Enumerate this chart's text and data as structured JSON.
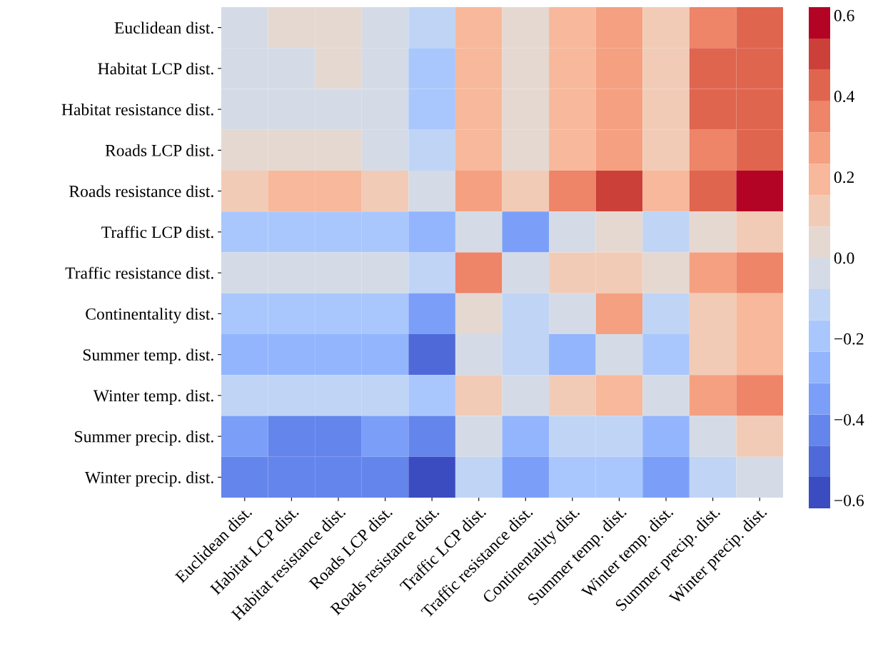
{
  "chart_data": {
    "type": "heatmap",
    "categories": [
      "Euclidean dist.",
      "Habitat LCP dist.",
      "Habitat resistance dist.",
      "Roads LCP dist.",
      "Roads resistance dist.",
      "Traffic LCP dist.",
      "Traffic resistance dist.",
      "Continentality dist.",
      "Summer temp. dist.",
      "Winter temp. dist.",
      "Summer precip. dist.",
      "Winter precip. dist."
    ],
    "y_categories": [
      "Euclidean dist.",
      "Habitat LCP dist.",
      "Habitat resistance dist.",
      "Roads LCP dist.",
      "Roads resistance dist.",
      "Traffic LCP dist.",
      "Traffic resistance dist.",
      "Continentality dist.",
      "Summer temp. dist.",
      "Winter temp. dist.",
      "Summer precip. dist.",
      "Winter precip. dist."
    ],
    "cells": [
      [
        -0.04,
        0.04,
        0.04,
        -0.04,
        -0.12,
        0.19,
        0.04,
        0.19,
        0.27,
        0.12,
        0.35,
        0.43
      ],
      [
        -0.04,
        -0.04,
        0.04,
        -0.04,
        -0.19,
        0.19,
        0.04,
        0.19,
        0.27,
        0.12,
        0.43,
        0.43
      ],
      [
        -0.04,
        -0.04,
        -0.04,
        -0.04,
        -0.19,
        0.19,
        0.04,
        0.19,
        0.27,
        0.12,
        0.43,
        0.43
      ],
      [
        0.04,
        0.04,
        0.04,
        -0.04,
        -0.12,
        0.19,
        0.04,
        0.19,
        0.27,
        0.12,
        0.35,
        0.43
      ],
      [
        0.12,
        0.19,
        0.19,
        0.12,
        -0.04,
        0.27,
        0.12,
        0.35,
        0.5,
        0.19,
        0.43,
        0.58
      ],
      [
        -0.19,
        -0.19,
        -0.19,
        -0.19,
        -0.27,
        -0.04,
        -0.35,
        -0.04,
        0.04,
        -0.12,
        0.04,
        0.12
      ],
      [
        -0.04,
        -0.04,
        -0.04,
        -0.04,
        -0.12,
        0.35,
        -0.04,
        0.12,
        0.12,
        0.04,
        0.27,
        0.35
      ],
      [
        -0.19,
        -0.19,
        -0.19,
        -0.19,
        -0.35,
        0.04,
        -0.12,
        -0.04,
        0.27,
        -0.12,
        0.12,
        0.19
      ],
      [
        -0.27,
        -0.27,
        -0.27,
        -0.27,
        -0.5,
        -0.04,
        -0.12,
        -0.27,
        -0.04,
        -0.19,
        0.12,
        0.19
      ],
      [
        -0.12,
        -0.12,
        -0.12,
        -0.12,
        -0.19,
        0.12,
        -0.04,
        0.12,
        0.19,
        -0.04,
        0.27,
        0.35
      ],
      [
        -0.35,
        -0.43,
        -0.43,
        -0.35,
        -0.43,
        -0.04,
        -0.27,
        -0.12,
        -0.12,
        -0.27,
        -0.04,
        0.12
      ],
      [
        -0.43,
        -0.43,
        -0.43,
        -0.43,
        -0.58,
        -0.12,
        -0.35,
        -0.19,
        -0.19,
        -0.35,
        -0.12,
        -0.04
      ]
    ],
    "clim": [
      -0.62,
      0.62
    ],
    "cticks": [
      {
        "value": -0.6,
        "label": "−0.6"
      },
      {
        "value": -0.4,
        "label": "−0.4"
      },
      {
        "value": -0.2,
        "label": "−0.2"
      },
      {
        "value": 0.0,
        "label": "0.0"
      },
      {
        "value": 0.2,
        "label": "0.2"
      },
      {
        "value": 0.4,
        "label": "0.4"
      },
      {
        "value": 0.6,
        "label": "0.6"
      }
    ]
  }
}
